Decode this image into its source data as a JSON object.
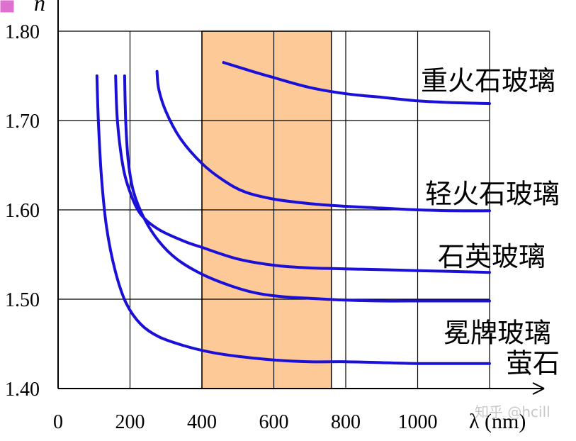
{
  "chart_data": {
    "type": "line",
    "ylabel": "n",
    "xlabel": "λ (nm)",
    "xlim": [
      0,
      1200
    ],
    "ylim": [
      1.4,
      1.8
    ],
    "x_ticks": [
      "0",
      "200",
      "400",
      "600",
      "800",
      "1000"
    ],
    "y_ticks": [
      "1.40",
      "1.50",
      "1.60",
      "1.70",
      "1.80"
    ],
    "grid": true,
    "highlight_band": {
      "x": [
        400,
        760
      ],
      "color": "#fdc996"
    },
    "series_color": "#1a10d8",
    "series": [
      {
        "name": "重火石玻璃",
        "x": [
          460,
          540,
          600,
          700,
          800,
          900,
          1000,
          1100,
          1200
        ],
        "y": [
          1.765,
          1.755,
          1.748,
          1.737,
          1.73,
          1.726,
          1.722,
          1.72,
          1.719
        ]
      },
      {
        "name": "轻火石玻璃",
        "x": [
          275,
          280,
          300,
          340,
          400,
          460,
          520,
          600,
          700,
          800,
          900,
          1000,
          1100,
          1200
        ],
        "y": [
          1.755,
          1.735,
          1.71,
          1.68,
          1.652,
          1.633,
          1.62,
          1.612,
          1.607,
          1.604,
          1.602,
          1.6,
          1.599,
          1.599
        ]
      },
      {
        "name": "石英玻璃",
        "x": [
          160,
          165,
          180,
          200,
          230,
          280,
          350,
          400,
          500,
          600,
          700,
          800,
          900,
          1000,
          1100,
          1200
        ],
        "y": [
          1.75,
          1.7,
          1.65,
          1.62,
          1.595,
          1.578,
          1.565,
          1.558,
          1.545,
          1.538,
          1.535,
          1.534,
          1.533,
          1.532,
          1.531,
          1.53
        ]
      },
      {
        "name": "冕牌玻璃",
        "x": [
          185,
          188,
          195,
          210,
          240,
          280,
          330,
          400,
          480,
          550,
          620,
          700,
          800,
          900,
          1000,
          1100,
          1200
        ],
        "y": [
          1.75,
          1.7,
          1.655,
          1.62,
          1.59,
          1.565,
          1.545,
          1.528,
          1.515,
          1.507,
          1.503,
          1.501,
          1.499,
          1.498,
          1.498,
          1.498,
          1.498
        ]
      },
      {
        "name": "萤石",
        "x": [
          108,
          112,
          120,
          135,
          160,
          190,
          230,
          280,
          350,
          420,
          500,
          600,
          700,
          800,
          900,
          1000,
          1100,
          1200
        ],
        "y": [
          1.75,
          1.7,
          1.64,
          1.58,
          1.53,
          1.495,
          1.472,
          1.458,
          1.448,
          1.441,
          1.436,
          1.432,
          1.43,
          1.43,
          1.429,
          1.428,
          1.428,
          1.428
        ]
      }
    ]
  },
  "legend_square_color": "#e070d0",
  "watermark": "知乎 @hcill"
}
